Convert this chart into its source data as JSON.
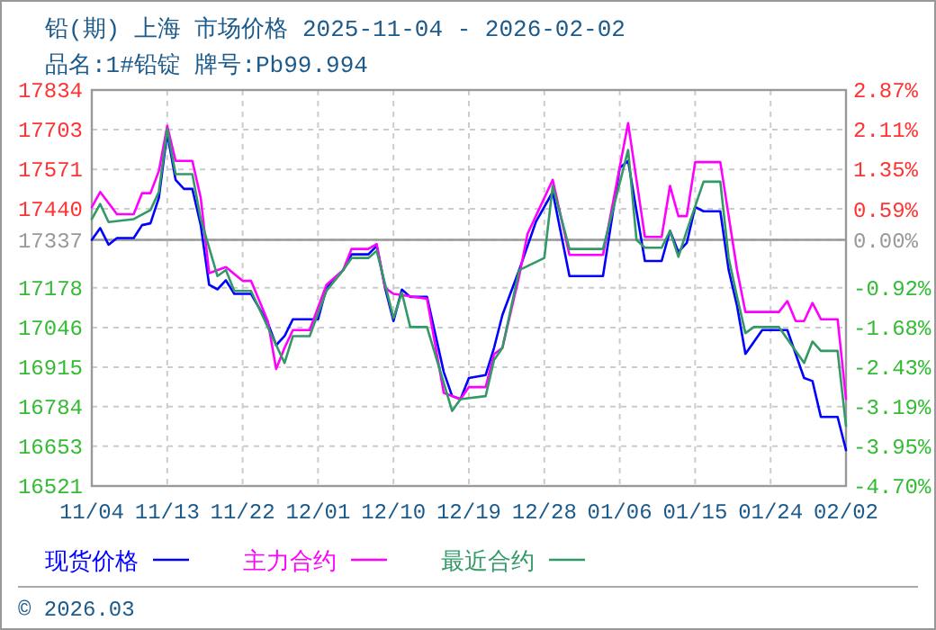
{
  "chart_data": {
    "type": "line",
    "title": "铅(期) 上海 市场价格 2025-11-04 - 2026-02-02",
    "subtitle": "品名:1#铅锭 牌号:Pb99.994",
    "annotations": [
      "© 2026.03"
    ],
    "xlim": [
      "2025-11-04",
      "2026-02-02"
    ],
    "xticks": [
      {
        "value": "2025-11-04",
        "label": "11/04"
      },
      {
        "value": "2025-11-13",
        "label": "11/13"
      },
      {
        "value": "2025-11-22",
        "label": "11/22"
      },
      {
        "value": "2025-12-01",
        "label": "12/01"
      },
      {
        "value": "2025-12-10",
        "label": "12/10"
      },
      {
        "value": "2025-12-19",
        "label": "12/19"
      },
      {
        "value": "2025-12-28",
        "label": "12/28"
      },
      {
        "value": "2026-01-06",
        "label": "01/06"
      },
      {
        "value": "2026-01-15",
        "label": "01/15"
      },
      {
        "value": "2026-01-24",
        "label": "01/24"
      },
      {
        "value": "2026-02-02",
        "label": "02/02"
      }
    ],
    "ylim": [
      16521,
      17834
    ],
    "yticks": [
      16521,
      16653,
      16784,
      16915,
      17046,
      17178,
      17337,
      17440,
      17571,
      17703,
      17834
    ],
    "y2lim": [
      -4.7,
      2.87
    ],
    "y2ticks": [
      {
        "value": -4.7,
        "label": "-4.70%"
      },
      {
        "value": -3.95,
        "label": "-3.95%"
      },
      {
        "value": -3.19,
        "label": "-3.19%"
      },
      {
        "value": -2.43,
        "label": "-2.43%"
      },
      {
        "value": -1.68,
        "label": "-1.68%"
      },
      {
        "value": -0.92,
        "label": "-0.92%"
      },
      {
        "value": 0,
        "label": "0.00%"
      },
      {
        "value": 0.59,
        "label": "0.59%"
      },
      {
        "value": 1.35,
        "label": "1.35%"
      },
      {
        "value": 2.11,
        "label": "2.11%"
      },
      {
        "value": 2.87,
        "label": "2.87%"
      }
    ],
    "ref_lines": [
      {
        "axis": "y",
        "value": 17337,
        "color": "#999999",
        "line_style": "solid"
      }
    ],
    "grid": true,
    "legend": "bottom",
    "marker": "none",
    "line_style": "solid",
    "series": [
      {
        "name": "现货价格",
        "color": "#0000ff",
        "x": [
          "2025-11-04",
          "2025-11-05",
          "2025-11-06",
          "2025-11-07",
          "2025-11-09",
          "2025-11-10",
          "2025-11-11",
          "2025-11-12",
          "2025-11-13",
          "2025-11-14",
          "2025-11-15",
          "2025-11-16",
          "2025-11-17",
          "2025-11-18",
          "2025-11-19",
          "2025-11-20",
          "2025-11-21",
          "2025-11-23",
          "2025-11-25",
          "2025-11-26",
          "2025-11-27",
          "2025-11-28",
          "2025-12-01",
          "2025-12-02",
          "2025-12-04",
          "2025-12-05",
          "2025-12-07",
          "2025-12-08",
          "2025-12-09",
          "2025-12-10",
          "2025-12-11",
          "2025-12-12",
          "2025-12-14",
          "2025-12-16",
          "2025-12-17",
          "2025-12-18",
          "2025-12-19",
          "2025-12-21",
          "2025-12-22",
          "2025-12-23",
          "2025-12-25",
          "2025-12-27",
          "2025-12-29",
          "2025-12-31",
          "2026-01-04",
          "2026-01-06",
          "2026-01-07",
          "2026-01-09",
          "2026-01-11",
          "2026-01-12",
          "2026-01-13",
          "2026-01-14",
          "2026-01-15",
          "2026-01-16",
          "2026-01-18",
          "2026-01-19",
          "2026-01-20",
          "2026-01-21",
          "2026-01-23",
          "2026-01-26",
          "2026-01-28",
          "2026-01-29",
          "2026-01-30",
          "2026-02-01",
          "2026-02-02"
        ],
        "values": [
          17337,
          17376,
          17321,
          17343,
          17343,
          17386,
          17392,
          17476,
          17691,
          17536,
          17506,
          17506,
          17386,
          17188,
          17173,
          17203,
          17158,
          17158,
          17062,
          16988,
          17018,
          17074,
          17074,
          17178,
          17237,
          17289,
          17289,
          17317,
          17178,
          17068,
          17172,
          17148,
          17148,
          16899,
          16819,
          16809,
          16879,
          16889,
          16979,
          17088,
          17237,
          17397,
          17496,
          17217,
          17217,
          17576,
          17599,
          17267,
          17267,
          17367,
          17297,
          17327,
          17446,
          17432,
          17432,
          17237,
          17118,
          16959,
          17038,
          17038,
          16879,
          16869,
          16750,
          16750,
          16640
        ]
      },
      {
        "name": "主力合约",
        "color": "#ff00ff",
        "x": [
          "2025-11-04",
          "2025-11-05",
          "2025-11-07",
          "2025-11-09",
          "2025-11-10",
          "2025-11-11",
          "2025-11-12",
          "2025-11-13",
          "2025-11-14",
          "2025-11-16",
          "2025-11-17",
          "2025-11-18",
          "2025-11-20",
          "2025-11-22",
          "2025-11-23",
          "2025-11-25",
          "2025-11-26",
          "2025-11-27",
          "2025-11-28",
          "2025-11-30",
          "2025-12-02",
          "2025-12-04",
          "2025-12-05",
          "2025-12-07",
          "2025-12-08",
          "2025-12-09",
          "2025-12-10",
          "2025-12-14",
          "2025-12-16",
          "2025-12-18",
          "2025-12-19",
          "2025-12-21",
          "2025-12-22",
          "2025-12-23",
          "2025-12-25",
          "2025-12-26",
          "2025-12-29",
          "2025-12-31",
          "2026-01-04",
          "2026-01-07",
          "2026-01-09",
          "2026-01-11",
          "2026-01-12",
          "2026-01-13",
          "2026-01-14",
          "2026-01-15",
          "2026-01-18",
          "2026-01-19",
          "2026-01-20",
          "2026-01-21",
          "2026-01-25",
          "2026-01-26",
          "2026-01-27",
          "2026-01-28",
          "2026-01-29",
          "2026-01-30",
          "2026-02-01",
          "2026-02-02"
        ],
        "values": [
          17446,
          17496,
          17422,
          17422,
          17492,
          17492,
          17565,
          17715,
          17599,
          17599,
          17476,
          17227,
          17247,
          17201,
          17201,
          17068,
          16909,
          16979,
          17038,
          17038,
          17188,
          17237,
          17307,
          17307,
          17323,
          17178,
          17158,
          17142,
          16830,
          16809,
          16849,
          16849,
          16958,
          16979,
          17217,
          17357,
          17536,
          17287,
          17287,
          17724,
          17347,
          17347,
          17516,
          17416,
          17416,
          17595,
          17595,
          17416,
          17237,
          17098,
          17098,
          17134,
          17068,
          17068,
          17128,
          17074,
          17074,
          16809
        ]
      },
      {
        "name": "最近合约",
        "color": "#339966",
        "x": [
          "2025-11-04",
          "2025-11-05",
          "2025-11-06",
          "2025-11-09",
          "2025-11-11",
          "2025-11-12",
          "2025-11-13",
          "2025-11-14",
          "2025-11-16",
          "2025-11-17",
          "2025-11-19",
          "2025-11-20",
          "2025-11-21",
          "2025-11-23",
          "2025-11-25",
          "2025-11-27",
          "2025-11-28",
          "2025-11-30",
          "2025-12-02",
          "2025-12-04",
          "2025-12-05",
          "2025-12-07",
          "2025-12-08",
          "2025-12-09",
          "2025-12-10",
          "2025-12-11",
          "2025-12-12",
          "2025-12-14",
          "2025-12-17",
          "2025-12-18",
          "2025-12-21",
          "2025-12-22",
          "2025-12-23",
          "2025-12-25",
          "2025-12-28",
          "2025-12-29",
          "2025-12-31",
          "2026-01-04",
          "2026-01-07",
          "2026-01-08",
          "2026-01-09",
          "2026-01-11",
          "2026-01-12",
          "2026-01-13",
          "2026-01-14",
          "2026-01-16",
          "2026-01-18",
          "2026-01-19",
          "2026-01-20",
          "2026-01-21",
          "2026-01-22",
          "2026-01-25",
          "2026-01-26",
          "2026-01-28",
          "2026-01-29",
          "2026-01-30",
          "2026-02-01",
          "2026-02-02"
        ],
        "values": [
          17406,
          17456,
          17396,
          17406,
          17436,
          17496,
          17705,
          17555,
          17555,
          17406,
          17217,
          17237,
          17168,
          17168,
          17048,
          16929,
          17018,
          17018,
          17168,
          17237,
          17277,
          17277,
          17301,
          17190,
          17078,
          17162,
          17048,
          17048,
          16770,
          16809,
          16819,
          16939,
          16979,
          17237,
          17277,
          17516,
          17307,
          17307,
          17635,
          17337,
          17311,
          17311,
          17367,
          17281,
          17367,
          17530,
          17530,
          17277,
          17148,
          17028,
          17048,
          17048,
          17008,
          16929,
          17000,
          16969,
          16969,
          16720
        ]
      }
    ]
  }
}
